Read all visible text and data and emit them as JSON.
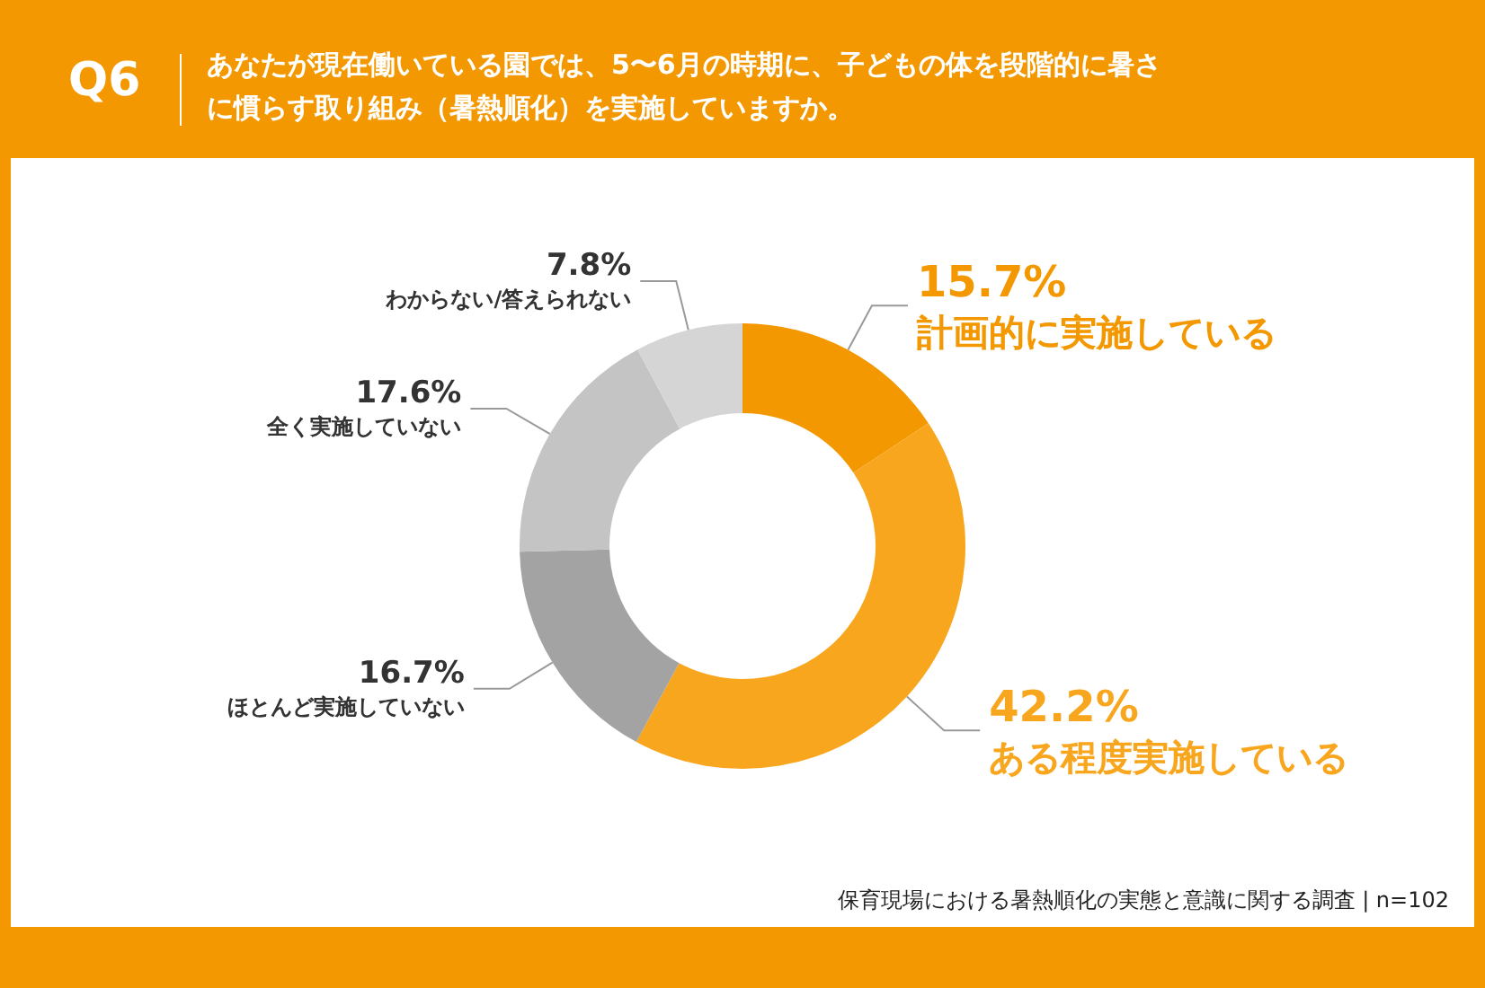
{
  "chart_data": {
    "type": "donut",
    "title": "Q6",
    "subtitle": "あなたが現在働いている園では、5〜6月の時期に、子どもの体を段階的に暑さに慣らす取り組み（暑熱順化）を実施していますか。",
    "categories": [
      "計画的に実施している",
      "ある程度実施している",
      "ほとんど実施していない",
      "全く実施していない",
      "わからない/答えられない"
    ],
    "values": [
      15.7,
      42.2,
      16.7,
      17.6,
      7.8
    ],
    "value_labels": [
      "15.7%",
      "42.2%",
      "16.7%",
      "17.6%",
      "7.8%"
    ],
    "colors": [
      "#f39800",
      "#f8a61e",
      "#a3a3a3",
      "#c4c4c4",
      "#d5d5d5"
    ],
    "annotations": [
      "保育現場における暑熱順化の実態と意識に関する調査 | n=102"
    ],
    "legend": false
  }
}
